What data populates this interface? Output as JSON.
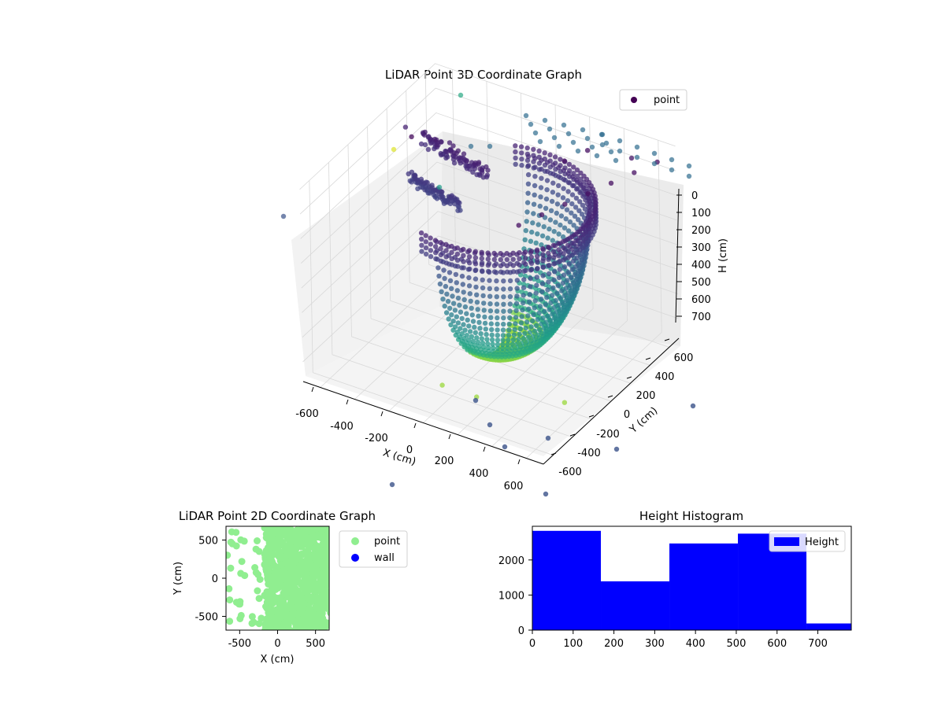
{
  "chart_data": [
    {
      "type": "scatter",
      "dimension": "3d",
      "title": "LiDAR Point 3D Coordinate Graph",
      "xlabel": "X (cm)",
      "ylabel": "Y (cm)",
      "zlabel": "H (cm)",
      "xlim": [
        -700,
        700
      ],
      "ylim": [
        -700,
        700
      ],
      "zlim": [
        0,
        780
      ],
      "z_inverted": true,
      "x_ticks": [
        -600,
        -400,
        -200,
        0,
        200,
        400,
        600
      ],
      "y_ticks": [
        -600,
        -400,
        -200,
        0,
        200,
        400,
        600
      ],
      "z_ticks": [
        0,
        100,
        200,
        300,
        400,
        500,
        600,
        700
      ],
      "colormap": "viridis",
      "legend": {
        "placement": "upper-right",
        "entries": [
          {
            "label": "point",
            "color": "#440154"
          }
        ]
      },
      "grid": true,
      "series": [
        {
          "name": "point",
          "description_of_shape": "dense half-shell (dome) of points centred near the origin, open toward -X, with outlier points far from centre",
          "points": [
            [
              -650,
              300,
              100
            ],
            [
              -500,
              100,
              30
            ],
            [
              500,
              600,
              60
            ],
            [
              600,
              -300,
              700
            ],
            [
              200,
              -500,
              700
            ],
            [
              0,
              -500,
              700
            ],
            [
              650,
              600,
              40
            ],
            [
              600,
              450,
              40
            ],
            [
              550,
              300,
              40
            ],
            [
              500,
              150,
              40
            ],
            [
              450,
              0,
              40
            ],
            [
              400,
              -150,
              40
            ],
            [
              350,
              -300,
              40
            ],
            [
              300,
              500,
              40
            ],
            [
              250,
              350,
              40
            ]
          ]
        }
      ]
    },
    {
      "type": "scatter",
      "title": "LiDAR Point 2D Coordinate Graph",
      "xlabel": "X (cm)",
      "ylabel": "Y (cm)",
      "xlim": [
        -680,
        680
      ],
      "ylim": [
        -680,
        680
      ],
      "x_ticks": [
        -500,
        0,
        500
      ],
      "y_ticks": [
        -500,
        0,
        500
      ],
      "legend": {
        "placement": "outside-right",
        "entries": [
          {
            "label": "point",
            "color": "#90ee90"
          },
          {
            "label": "wall",
            "color": "#0000ff"
          }
        ]
      },
      "series": [
        {
          "name": "point",
          "color": "#90ee90",
          "description_of_shape": "dense filled disk covering approx X -100..650, Y -650..650 with scattered points toward X -650"
        },
        {
          "name": "wall",
          "color": "#0000ff",
          "points": []
        }
      ]
    },
    {
      "type": "bar",
      "subtype": "histogram",
      "title": "Height Histogram",
      "xlabel": "",
      "ylabel": "",
      "bin_edges": [
        0,
        168,
        336,
        504,
        672,
        782
      ],
      "values": [
        2830,
        1390,
        2470,
        2750,
        190
      ],
      "xlim": [
        0,
        782
      ],
      "ylim": [
        0,
        2960
      ],
      "x_ticks": [
        0,
        100,
        200,
        300,
        400,
        500,
        600,
        700
      ],
      "y_ticks": [
        0,
        1000,
        2000
      ],
      "color": "#0000ff",
      "legend": {
        "placement": "upper-right",
        "entries": [
          {
            "label": "Height",
            "color": "#0000ff"
          }
        ]
      }
    }
  ]
}
